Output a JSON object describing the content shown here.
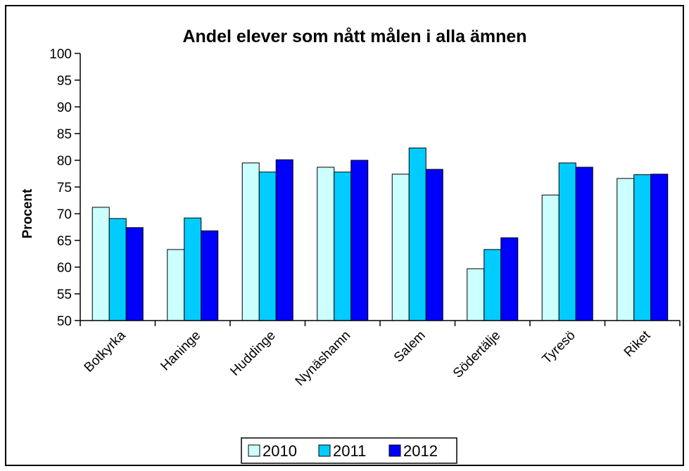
{
  "chart_data": {
    "type": "bar",
    "title": "Andel elever som nått målen i alla ämnen",
    "xlabel": "",
    "ylabel": "Procent",
    "ylim": [
      50,
      100
    ],
    "ytick_step": 5,
    "yticks": [
      "50",
      "55",
      "60",
      "65",
      "70",
      "75",
      "80",
      "85",
      "90",
      "95",
      "100"
    ],
    "grid": false,
    "legend_position": "bottom",
    "categories": [
      "Botkyrka",
      "Haninge",
      "Huddinge",
      "Nynäshamn",
      "Salem",
      "Södertälje",
      "Tyresö",
      "Riket"
    ],
    "series": [
      {
        "name": "2010",
        "color": "#ccffff",
        "values": [
          71.2,
          63.3,
          79.5,
          78.7,
          77.4,
          59.7,
          73.5,
          76.6
        ]
      },
      {
        "name": "2011",
        "color": "#00ccff",
        "values": [
          69.1,
          69.2,
          77.8,
          77.8,
          82.3,
          63.3,
          79.5,
          77.3
        ]
      },
      {
        "name": "2012",
        "color": "#0000ff",
        "values": [
          67.4,
          66.8,
          80.1,
          80.0,
          78.3,
          65.5,
          78.7,
          77.4
        ]
      }
    ]
  }
}
